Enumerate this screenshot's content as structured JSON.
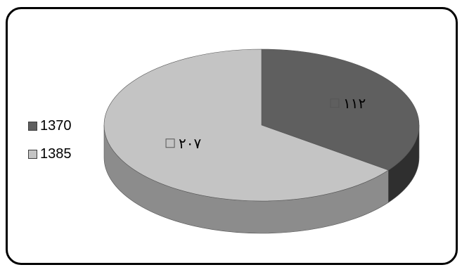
{
  "chart_data": {
    "type": "pie",
    "style": "3d",
    "title": "",
    "categories": [
      "1370",
      "1385"
    ],
    "values": [
      112,
      207
    ],
    "data_labels": [
      "١١٢",
      "٢٠٧"
    ],
    "colors": [
      "#5f5f5f",
      "#c4c4c4"
    ],
    "side_colors": [
      "#2f2f2f",
      "#8c8c8c"
    ],
    "legend": {
      "placement": "left",
      "entries": [
        "1370",
        "1385"
      ]
    }
  }
}
